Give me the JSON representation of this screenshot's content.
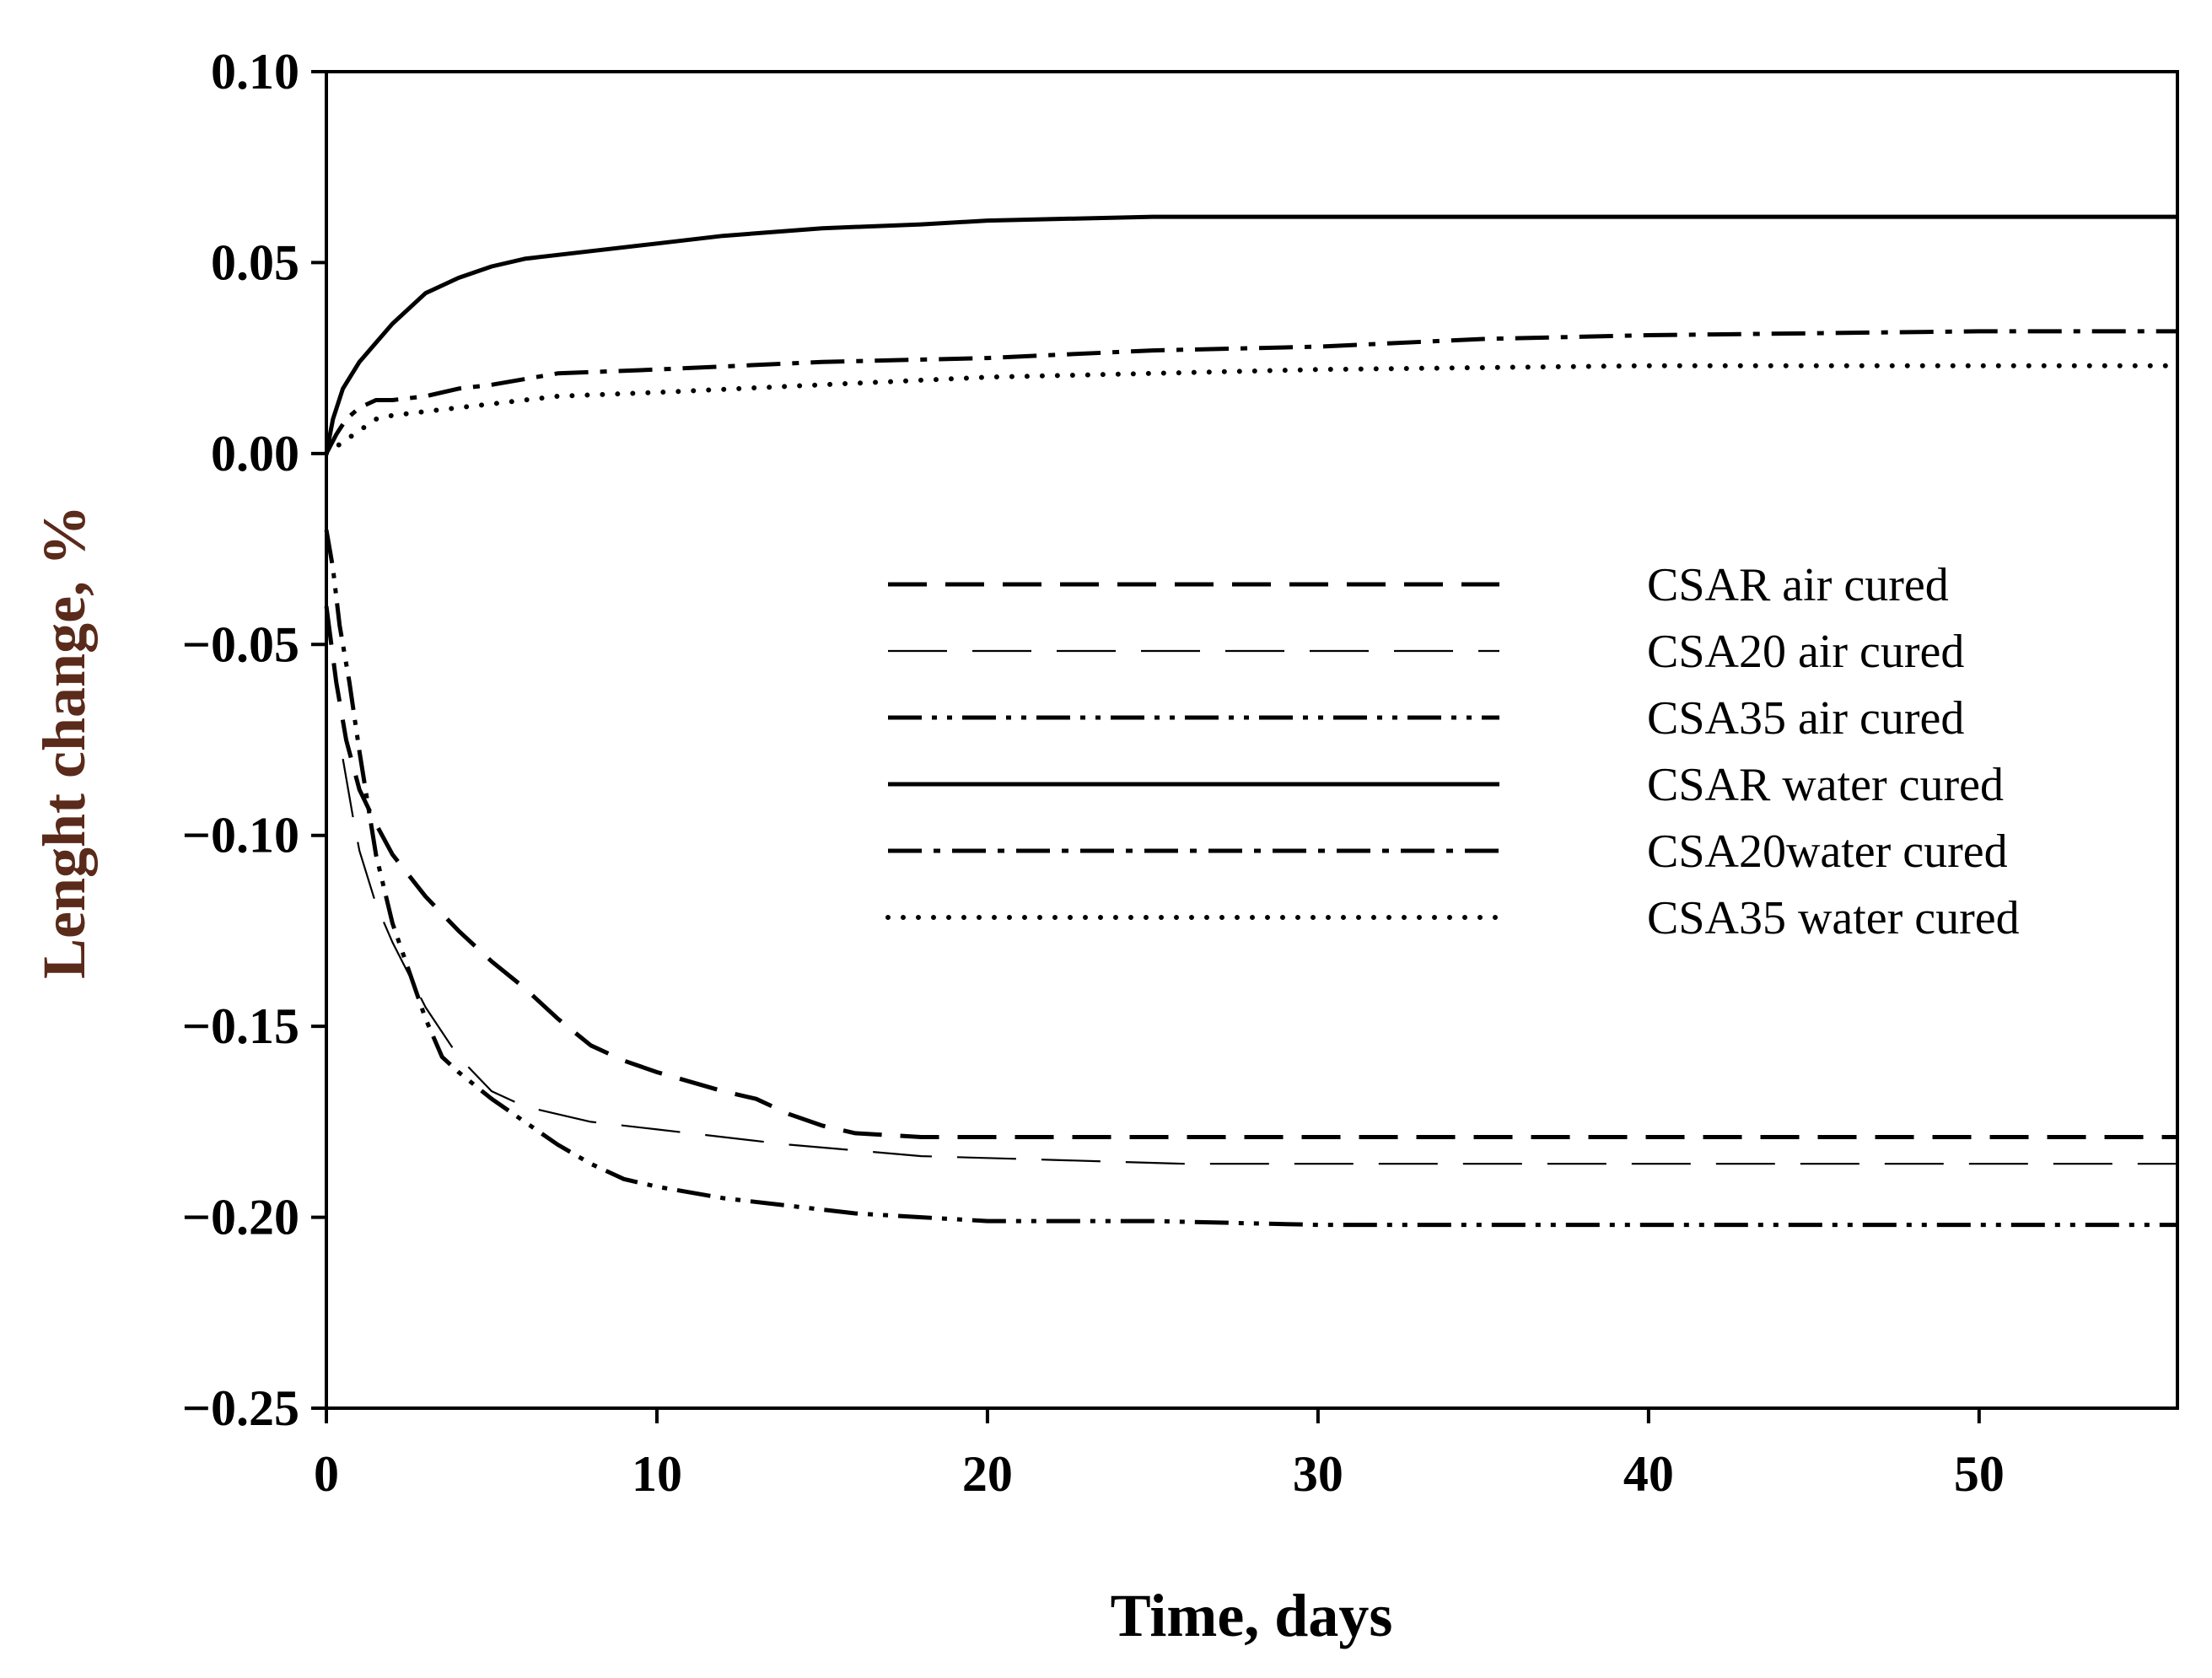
{
  "chart_data": {
    "type": "line",
    "xlabel": "Time, days",
    "ylabel": "Lenght change, %",
    "ylabel_color": "#5a2a1a",
    "xlim": [
      0,
      56
    ],
    "ylim": [
      -0.25,
      0.1
    ],
    "xticks": [
      0,
      10,
      20,
      30,
      40,
      50
    ],
    "xtick_labels": [
      "0",
      "10",
      "20",
      "30",
      "40",
      "50"
    ],
    "yticks": [
      0.1,
      0.05,
      0.0,
      -0.05,
      -0.1,
      -0.15,
      -0.2,
      -0.25
    ],
    "ytick_labels": [
      "0.10",
      "0.05",
      "0.00",
      "−0.05",
      "−0.10",
      "−0.15",
      "−0.20",
      "−0.25"
    ],
    "grid": false,
    "legend_position": "center-right",
    "series": [
      {
        "name": "CSAR air cured",
        "style": "long-dash",
        "x": [
          0,
          0.3,
          0.6,
          1,
          1.5,
          2,
          3,
          4,
          5,
          6,
          7,
          8,
          9,
          10,
          12,
          13,
          14,
          15,
          16,
          18,
          20,
          30,
          40,
          50,
          56
        ],
        "values": [
          -0.04,
          -0.06,
          -0.075,
          -0.088,
          -0.097,
          -0.105,
          -0.116,
          -0.125,
          -0.133,
          -0.14,
          -0.148,
          -0.155,
          -0.159,
          -0.162,
          -0.167,
          -0.169,
          -0.173,
          -0.176,
          -0.178,
          -0.179,
          -0.179,
          -0.179,
          -0.179,
          -0.179,
          -0.179
        ]
      },
      {
        "name": "CSA20 air cured",
        "style": "thin-dash",
        "x": [
          0.5,
          0.8,
          1,
          1.5,
          2,
          3,
          4,
          5,
          6,
          8,
          10,
          14,
          18,
          22,
          26,
          30,
          40,
          50,
          56
        ],
        "values": [
          -0.08,
          -0.095,
          -0.104,
          -0.118,
          -0.128,
          -0.145,
          -0.158,
          -0.167,
          -0.171,
          -0.175,
          -0.177,
          -0.181,
          -0.184,
          -0.185,
          -0.186,
          -0.186,
          -0.186,
          -0.186,
          -0.186
        ]
      },
      {
        "name": "CSA35 air cured",
        "style": "dash-dot-dot",
        "x": [
          0,
          0.2,
          0.4,
          0.7,
          1,
          1.5,
          2,
          3,
          3.5,
          4,
          5,
          6,
          7,
          8,
          9,
          10,
          12,
          14,
          16,
          18,
          20,
          25,
          30,
          40,
          50,
          56
        ],
        "values": [
          -0.02,
          -0.03,
          -0.045,
          -0.06,
          -0.078,
          -0.105,
          -0.123,
          -0.148,
          -0.158,
          -0.162,
          -0.169,
          -0.175,
          -0.181,
          -0.186,
          -0.19,
          -0.192,
          -0.195,
          -0.197,
          -0.199,
          -0.2,
          -0.201,
          -0.201,
          -0.202,
          -0.202,
          -0.202,
          -0.202
        ]
      },
      {
        "name": "CSAR water cured",
        "style": "solid",
        "x": [
          0,
          0.2,
          0.5,
          1,
          1.5,
          2,
          3,
          4,
          5,
          6,
          8,
          10,
          12,
          15,
          18,
          20,
          25,
          30,
          40,
          50,
          56
        ],
        "values": [
          0,
          0.009,
          0.017,
          0.024,
          0.029,
          0.034,
          0.042,
          0.046,
          0.049,
          0.051,
          0.053,
          0.055,
          0.057,
          0.059,
          0.06,
          0.061,
          0.062,
          0.062,
          0.062,
          0.062,
          0.062
        ]
      },
      {
        "name": "CSA20water cured",
        "style": "dash-dot",
        "x": [
          0,
          0.3,
          0.6,
          1,
          1.5,
          2,
          3,
          4,
          5,
          7,
          10,
          15,
          20,
          25,
          30,
          35,
          40,
          50,
          56
        ],
        "values": [
          0,
          0.005,
          0.009,
          0.012,
          0.014,
          0.014,
          0.015,
          0.017,
          0.018,
          0.021,
          0.022,
          0.024,
          0.025,
          0.027,
          0.028,
          0.03,
          0.031,
          0.032,
          0.032
        ]
      },
      {
        "name": "CSA35 water cured",
        "style": "dotted",
        "x": [
          0,
          0.5,
          1,
          1.5,
          2,
          3,
          5,
          7,
          10,
          15,
          20,
          25,
          30,
          40,
          50,
          56
        ],
        "values": [
          0,
          0.003,
          0.006,
          0.009,
          0.01,
          0.011,
          0.013,
          0.015,
          0.016,
          0.018,
          0.02,
          0.021,
          0.022,
          0.023,
          0.023,
          0.023
        ]
      }
    ]
  }
}
